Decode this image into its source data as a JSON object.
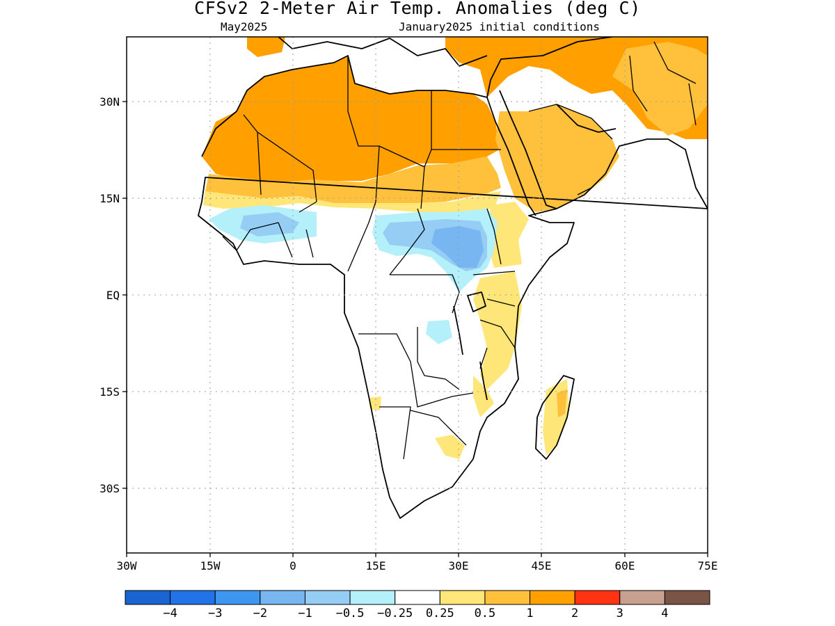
{
  "title": "CFSv2 2-Meter Air Temp. Anomalies (deg C)",
  "valid_month": "May2025",
  "init_conditions": "January2025 initial conditions",
  "map": {
    "lon_range": [
      -30,
      75
    ],
    "lat_range": [
      -40,
      40
    ],
    "lat_ticks": [
      "30N",
      "15N",
      "EQ",
      "15S",
      "30S"
    ],
    "lon_ticks": [
      "30W",
      "15W",
      "0",
      "15E",
      "30E",
      "45E",
      "60E",
      "75E"
    ],
    "grid": true,
    "grid_style": "dotted"
  },
  "colorbar": {
    "colors": [
      "#1a64d2",
      "#2273e8",
      "#3d96f0",
      "#78b6f2",
      "#96cdf5",
      "#b4f0fa",
      "#ffffff",
      "#ffe678",
      "#ffc03c",
      "#ffa000",
      "#ff3211",
      "#c8a090",
      "#7a5446"
    ],
    "labels": [
      "-4",
      "-3",
      "-2",
      "-1",
      "-0.5",
      "-0.25",
      "0.25",
      "0.5",
      "1",
      "2",
      "3",
      "4"
    ]
  },
  "anomaly_regions": [
    {
      "name": "Sahara / North Africa",
      "level": "1 to 2",
      "color": "#ffa000"
    },
    {
      "name": "Arabian Peninsula / Middle East",
      "level": "0.5 to 2",
      "color": "#ffc03c"
    },
    {
      "name": "Sahel",
      "level": "0.25 to 1",
      "color": "#ffe678"
    },
    {
      "name": "South Sudan / Central Africa",
      "level": "-1 to -0.25",
      "color": "#78b6f2"
    },
    {
      "name": "West Africa coast",
      "level": "-0.5 to -0.25",
      "color": "#b4f0fa"
    },
    {
      "name": "East Africa",
      "level": "0.25 to 1",
      "color": "#ffe678"
    },
    {
      "name": "Madagascar",
      "level": "0.25 to 1",
      "color": "#ffc03c"
    }
  ]
}
